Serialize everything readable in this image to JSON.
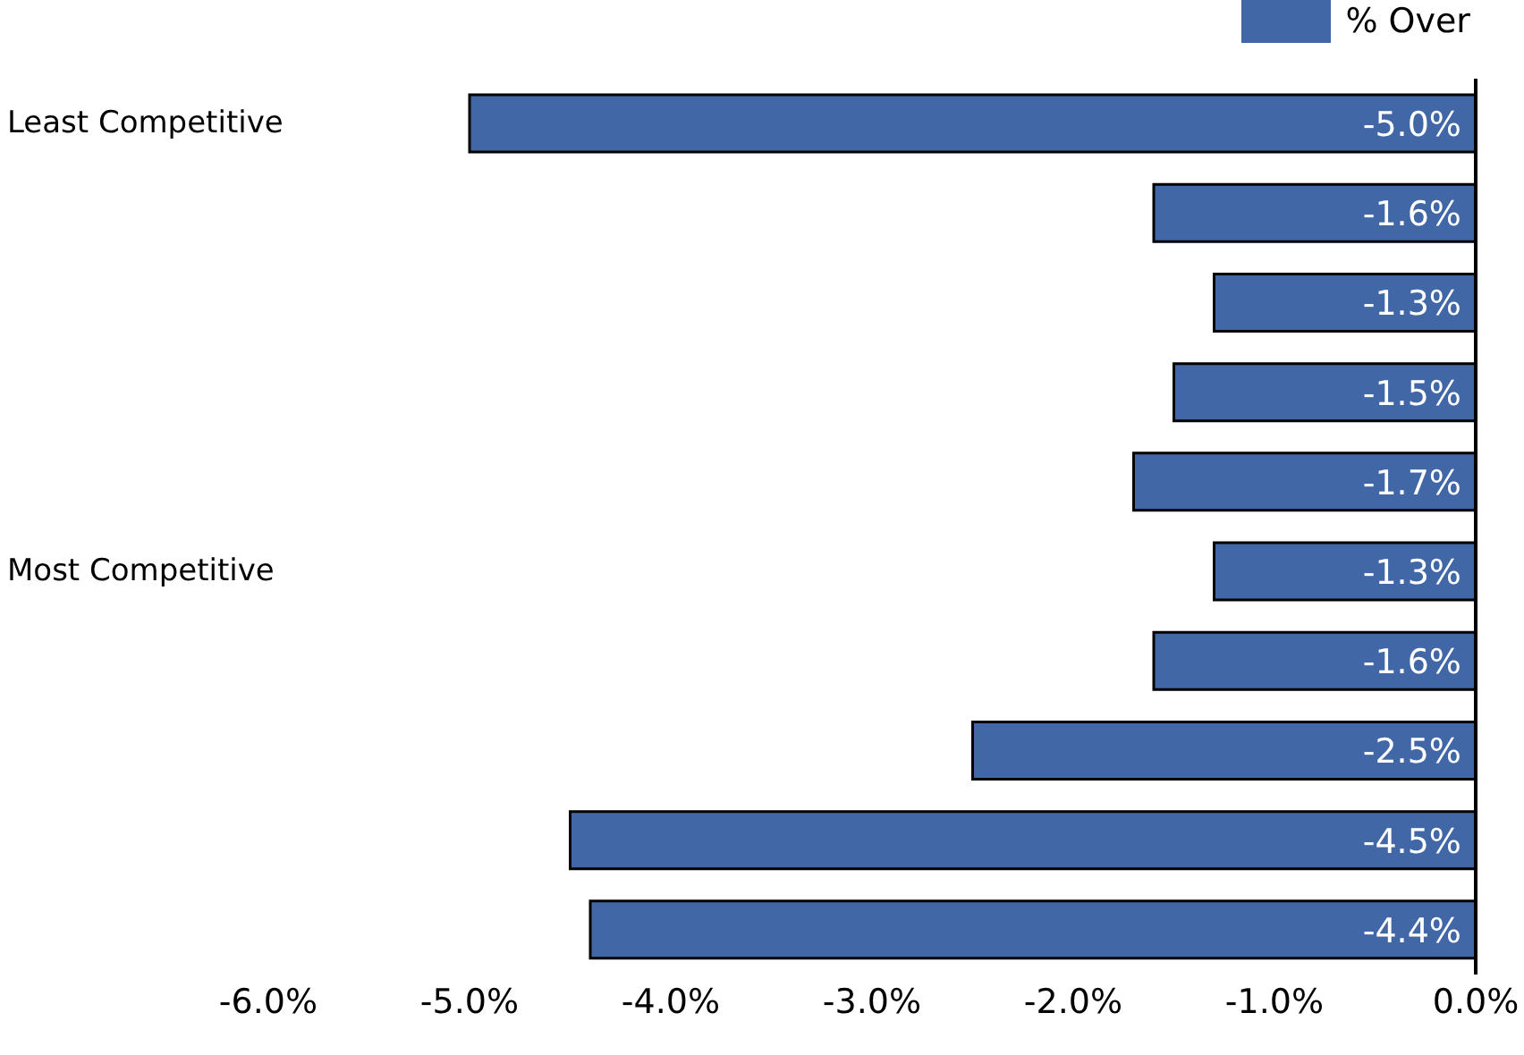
{
  "chart_data": {
    "type": "bar",
    "orientation": "horizontal",
    "categories": [
      "Least Competitive",
      null,
      null,
      null,
      null,
      "Most Competitive",
      null,
      null,
      null,
      null
    ],
    "series": [
      {
        "name": "% Over",
        "color": "#4167a7",
        "values": [
          -5.0,
          -1.6,
          -1.3,
          -1.5,
          -1.7,
          -1.3,
          -1.6,
          -2.5,
          -4.5,
          -4.4
        ],
        "value_labels": [
          "-5.0%",
          "-1.6%",
          "-1.3%",
          "-1.5%",
          "-1.7%",
          "-1.3%",
          "-1.6%",
          "-2.5%",
          "-4.5%",
          "-4.4%"
        ]
      }
    ],
    "xlim": [
      -6,
      0
    ],
    "xticks": [
      {
        "value": -6,
        "label": "-6.0%"
      },
      {
        "value": -5,
        "label": "-5.0%"
      },
      {
        "value": -4,
        "label": "-4.0%"
      },
      {
        "value": -3,
        "label": "-3.0%"
      },
      {
        "value": -2,
        "label": "-2.0%"
      },
      {
        "value": -1,
        "label": "-1.0%"
      },
      {
        "value": 0,
        "label": "0.0%"
      }
    ],
    "grid": false,
    "legend": "top right"
  }
}
